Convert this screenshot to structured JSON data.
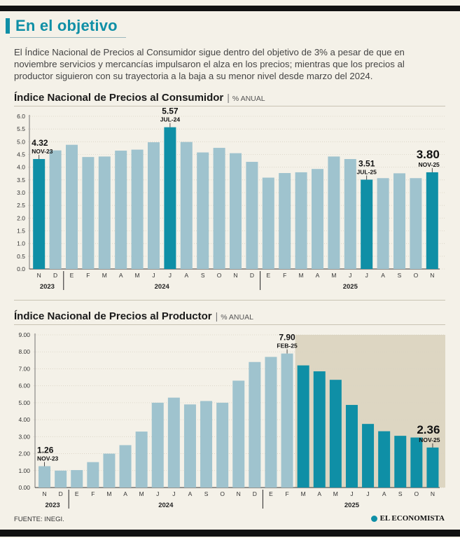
{
  "header": {
    "title": "En el objetivo",
    "intro": "El Índice Nacional de Precios al Consumidor sigue dentro del objetivo de 3% a pesar de que en noviembre servicios y mercancías impulsaron el alza en los precios; mientras que los precios al productor siguieron con su trayectoria a la baja a su menor nivel desde marzo del 2024."
  },
  "footer": {
    "source": "FUENTE: INEGI.",
    "brand": "EL ECONOMISTA"
  },
  "colors": {
    "accent": "#0f8fa6",
    "bar_light": "#9fc3ce",
    "bar_dark": "#0f8fa6",
    "shade": "#ddd6c2"
  },
  "chart_data": [
    {
      "type": "bar",
      "title": "Índice Nacional de Precios al Consumidor",
      "subtitle": "% ANUAL",
      "categories": [
        "N",
        "D",
        "E",
        "F",
        "M",
        "A",
        "M",
        "J",
        "J",
        "A",
        "S",
        "O",
        "N",
        "D",
        "E",
        "F",
        "M",
        "A",
        "M",
        "J",
        "J",
        "A",
        "S",
        "O",
        "N"
      ],
      "years": [
        {
          "label": "2023",
          "start": 0,
          "end": 1
        },
        {
          "label": "2024",
          "start": 2,
          "end": 13
        },
        {
          "label": "2025",
          "start": 14,
          "end": 24
        }
      ],
      "values": [
        4.32,
        4.66,
        4.88,
        4.4,
        4.42,
        4.65,
        4.69,
        4.98,
        5.57,
        4.99,
        4.58,
        4.76,
        4.55,
        4.21,
        3.59,
        3.77,
        3.8,
        3.93,
        4.42,
        4.32,
        3.51,
        3.57,
        3.76,
        3.57,
        3.8
      ],
      "highlight": [
        0,
        8,
        20,
        24
      ],
      "ylim": [
        0,
        6.0
      ],
      "yticks": [
        "0.0",
        "0.5",
        "1.0",
        "1.5",
        "2.0",
        "2.5",
        "3.0",
        "3.5",
        "4.0",
        "4.5",
        "5.0",
        "5.5",
        "6.0"
      ],
      "annotations": [
        {
          "index": 0,
          "value": "4.32",
          "label": "NOV-23",
          "big": false
        },
        {
          "index": 8,
          "value": "5.57",
          "label": "JUL-24",
          "big": false
        },
        {
          "index": 20,
          "value": "3.51",
          "label": "JUL-25",
          "big": false
        },
        {
          "index": 24,
          "value": "3.80",
          "label": "NOV-25",
          "big": true
        }
      ]
    },
    {
      "type": "bar",
      "title": "Índice Nacional de Precios al Productor",
      "subtitle": "% ANUAL",
      "categories": [
        "N",
        "D",
        "E",
        "F",
        "M",
        "A",
        "M",
        "J",
        "J",
        "A",
        "S",
        "O",
        "N",
        "D",
        "E",
        "F",
        "M",
        "A",
        "M",
        "J",
        "J",
        "A",
        "S",
        "O",
        "N"
      ],
      "years": [
        {
          "label": "2023",
          "start": 0,
          "end": 1
        },
        {
          "label": "2024",
          "start": 2,
          "end": 13
        },
        {
          "label": "2025",
          "start": 14,
          "end": 24
        }
      ],
      "values": [
        1.26,
        1.0,
        1.03,
        1.5,
        2.0,
        2.5,
        3.3,
        5.0,
        5.3,
        4.9,
        5.1,
        5.0,
        6.3,
        7.4,
        7.7,
        7.9,
        7.2,
        6.85,
        6.35,
        4.87,
        3.75,
        3.32,
        3.05,
        2.95,
        2.36
      ],
      "highlight": [
        16,
        17,
        18,
        19,
        20,
        21,
        22,
        23,
        24
      ],
      "shade_from": 16,
      "ylim": [
        0,
        9.0
      ],
      "yticks": [
        "0.00",
        "1.00",
        "2.00",
        "3.00",
        "4.00",
        "5.00",
        "6.00",
        "7.00",
        "8.00",
        "9.00"
      ],
      "annotations": [
        {
          "index": 0,
          "value": "1.26",
          "label": "NOV-23",
          "big": false
        },
        {
          "index": 15,
          "value": "7.90",
          "label": "FEB-25",
          "big": false
        },
        {
          "index": 24,
          "value": "2.36",
          "label": "NOV-25",
          "big": true
        }
      ]
    }
  ]
}
